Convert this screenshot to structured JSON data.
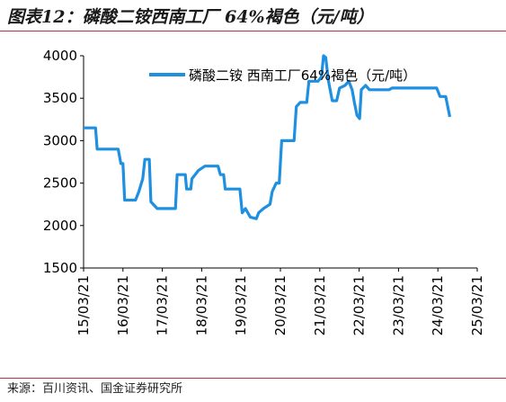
{
  "header": {
    "title": "图表12：磷酸二铵西南工厂 64%褐色（元/吨）"
  },
  "footer": {
    "source": "来源：百川资讯、国金证券研究所"
  },
  "colors": {
    "series": "#1f8fe0",
    "axis": "#000000",
    "rule": "#b8324e"
  },
  "chart_data": {
    "type": "line",
    "title": "",
    "xlabel": "",
    "ylabel": "",
    "ylim": [
      1500,
      4000
    ],
    "yticks": [
      1500,
      2000,
      2500,
      3000,
      3500,
      4000
    ],
    "xlim": [
      "2015-03-21",
      "2025-03-21"
    ],
    "xticks": [
      "15/03/21",
      "16/03/21",
      "17/03/21",
      "18/03/21",
      "19/03/21",
      "20/03/21",
      "21/03/21",
      "22/03/21",
      "23/03/21",
      "24/03/21",
      "25/03/21"
    ],
    "grid": false,
    "legend_position": "top-right",
    "series": [
      {
        "name": "磷酸二铵 西南工厂64%褐色（元/吨）",
        "points": [
          [
            "2015-03-21",
            3150
          ],
          [
            "2015-07-10",
            3150
          ],
          [
            "2015-07-25",
            2900
          ],
          [
            "2016-02-05",
            2900
          ],
          [
            "2016-03-01",
            2730
          ],
          [
            "2016-03-20",
            2730
          ],
          [
            "2016-04-05",
            2300
          ],
          [
            "2016-07-15",
            2300
          ],
          [
            "2016-08-15",
            2400
          ],
          [
            "2016-09-20",
            2550
          ],
          [
            "2016-10-10",
            2780
          ],
          [
            "2016-11-20",
            2780
          ],
          [
            "2016-12-05",
            2280
          ],
          [
            "2017-02-01",
            2200
          ],
          [
            "2017-07-20",
            2200
          ],
          [
            "2017-08-05",
            2600
          ],
          [
            "2017-10-20",
            2600
          ],
          [
            "2017-11-01",
            2430
          ],
          [
            "2017-12-10",
            2430
          ],
          [
            "2017-12-20",
            2550
          ],
          [
            "2018-02-20",
            2650
          ],
          [
            "2018-04-20",
            2700
          ],
          [
            "2018-08-20",
            2700
          ],
          [
            "2018-09-10",
            2600
          ],
          [
            "2018-10-10",
            2600
          ],
          [
            "2018-10-25",
            2430
          ],
          [
            "2019-03-10",
            2430
          ],
          [
            "2019-04-01",
            2150
          ],
          [
            "2019-05-01",
            2200
          ],
          [
            "2019-06-15",
            2100
          ],
          [
            "2019-08-10",
            2080
          ],
          [
            "2019-09-01",
            2150
          ],
          [
            "2019-10-15",
            2200
          ],
          [
            "2019-12-15",
            2250
          ],
          [
            "2020-01-05",
            2400
          ],
          [
            "2020-02-10",
            2500
          ],
          [
            "2020-03-10",
            2500
          ],
          [
            "2020-04-01",
            3000
          ],
          [
            "2020-07-25",
            3000
          ],
          [
            "2020-08-15",
            3400
          ],
          [
            "2020-09-20",
            3450
          ],
          [
            "2020-11-20",
            3450
          ],
          [
            "2020-12-10",
            3700
          ],
          [
            "2021-01-20",
            3700
          ],
          [
            "2021-03-05",
            3700
          ],
          [
            "2021-04-05",
            3750
          ],
          [
            "2021-04-25",
            4000
          ],
          [
            "2021-05-15",
            3980
          ],
          [
            "2021-06-10",
            3700
          ],
          [
            "2021-07-15",
            3470
          ],
          [
            "2021-08-25",
            3470
          ],
          [
            "2021-09-20",
            3620
          ],
          [
            "2021-11-10",
            3650
          ],
          [
            "2021-12-15",
            3700
          ],
          [
            "2022-01-15",
            3600
          ],
          [
            "2022-02-05",
            3450
          ],
          [
            "2022-03-01",
            3300
          ],
          [
            "2022-03-25",
            3260
          ],
          [
            "2022-04-10",
            3600
          ],
          [
            "2022-05-20",
            3650
          ],
          [
            "2022-06-25",
            3600
          ],
          [
            "2022-12-25",
            3600
          ],
          [
            "2023-01-20",
            3620
          ],
          [
            "2024-03-10",
            3620
          ],
          [
            "2024-04-10",
            3520
          ],
          [
            "2024-06-01",
            3520
          ],
          [
            "2024-07-10",
            3280
          ]
        ]
      }
    ]
  }
}
